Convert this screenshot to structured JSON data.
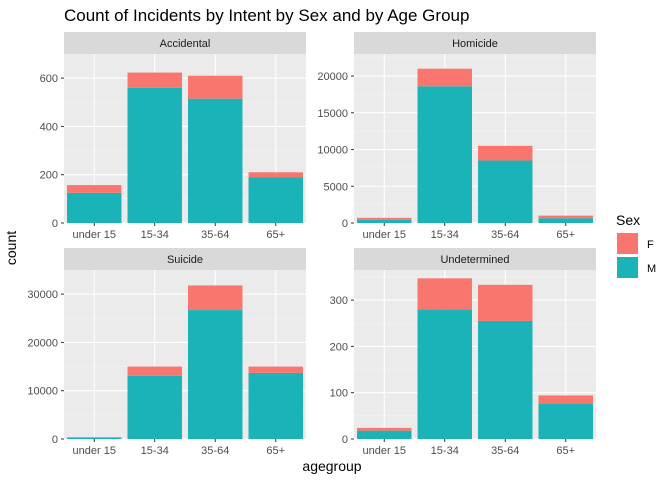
{
  "chart_data": {
    "type": "bar",
    "stacked": true,
    "title": "Count of Incidents by Intent by Sex and by Age Group",
    "xlabel": "agegroup",
    "ylabel": "count",
    "legend": {
      "title": "Sex",
      "position": "right",
      "entries": [
        {
          "name": "F",
          "color": "#F8766D"
        },
        {
          "name": "M",
          "color": "#00BFC4"
        }
      ]
    },
    "categories": [
      "under 15",
      "15-34",
      "35-64",
      "65+"
    ],
    "colors": {
      "F": "#F8766D",
      "M": "#1AB4B8",
      "panel_bg": "#EBEBEB",
      "strip_bg": "#D9D9D9"
    },
    "panels": [
      {
        "title": "Accidental",
        "ylim": [
          0,
          700
        ],
        "yticks": [
          0,
          200,
          400,
          600
        ],
        "series": [
          {
            "name": "M",
            "values": [
              125,
              560,
              515,
              190
            ]
          },
          {
            "name": "F",
            "values": [
              32,
              63,
              95,
              20
            ]
          }
        ]
      },
      {
        "title": "Homicide",
        "ylim": [
          0,
          23000
        ],
        "yticks": [
          0,
          5000,
          10000,
          15000,
          20000
        ],
        "series": [
          {
            "name": "M",
            "values": [
              450,
              18600,
              8500,
              650
            ]
          },
          {
            "name": "F",
            "values": [
              250,
              2400,
              2000,
              350
            ]
          }
        ]
      },
      {
        "title": "Suicide",
        "ylim": [
          0,
          35000
        ],
        "yticks": [
          0,
          10000,
          20000,
          30000
        ],
        "series": [
          {
            "name": "M",
            "values": [
              300,
              13100,
              26700,
              13700
            ]
          },
          {
            "name": "F",
            "values": [
              60,
              1900,
              5100,
              1300
            ]
          }
        ]
      },
      {
        "title": "Undetermined",
        "ylim": [
          0,
          365
        ],
        "yticks": [
          0,
          100,
          200,
          300
        ],
        "series": [
          {
            "name": "M",
            "values": [
              18,
              280,
              255,
              77
            ]
          },
          {
            "name": "F",
            "values": [
              6,
              67,
              78,
              17
            ]
          }
        ]
      }
    ]
  }
}
